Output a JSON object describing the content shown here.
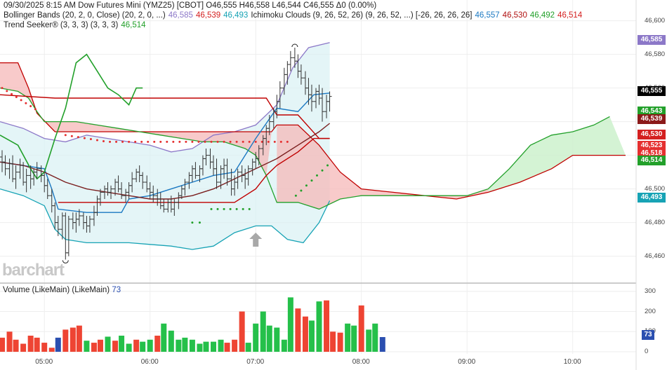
{
  "header": {
    "line1": "09/30/2025  8:15 AM Dow Futures Mini (YMZ25) [CBOT] O46,555 H46,558 L46,544 C46,555 Δ0 (0.00%)",
    "bb_label": "Bollinger Bands (20, 2, 0, Close)  (20, 2, 0, ...)",
    "bb_upper": "46,585",
    "bb_mid": "46,539",
    "bb_lower": "46,493",
    "ichi_label": "Ichimoku Clouds (9, 26, 52, 26)  (9, 26, 52, ...) [-26, 26, 26, 26]",
    "ichi_a": "46,557",
    "ichi_b": "46,530",
    "ichi_c": "46,492",
    "ichi_d": "46,514",
    "trend_label": "Trend Seeker® (3, 3, 3)  (3, 3, 3)",
    "trend_value": "46,514"
  },
  "volume_header": {
    "label": "Volume (LikeMain)  (LikeMain)",
    "value": "73"
  },
  "watermark": "barchart",
  "price_tags": [
    {
      "label": "46,585",
      "color": "#8c78c8",
      "price": 46585
    },
    {
      "label": "46,555",
      "color": "#000000",
      "price": 46555
    },
    {
      "label": "46,543",
      "color": "#22a02a",
      "price": 46543
    },
    {
      "label": "46,539",
      "color": "#8b1a1a",
      "price": 46539
    },
    {
      "label": "46,530",
      "color": "#d42020",
      "price": 46530
    },
    {
      "label": "46,523",
      "color": "#e53030",
      "price": 46523
    },
    {
      "label": "46,518",
      "color": "#e53030",
      "price": 46518
    },
    {
      "label": "46,514",
      "color": "#22a02a",
      "price": 46514
    },
    {
      "label": "46,493",
      "color": "#17a3b5",
      "price": 46493
    }
  ],
  "volume_tag": {
    "label": "73",
    "color": "#2b4fb0"
  },
  "colors": {
    "bb_band": "#8c78c8",
    "bb_lower": "#17a3b5",
    "bb_fill": "#d9f1f3",
    "ichi_blue": "#1a78c2",
    "ichi_red": "#c00000",
    "ichi_green": "#22a02a",
    "cloud_red": "#f5b8b8",
    "cloud_green": "#c9f0c9",
    "trend": "#7a1e1e",
    "vol_up": "#25c04a",
    "vol_down": "#ee4433",
    "vol_neutral": "#2b4fb0"
  },
  "chart_data": [
    {
      "type": "candlestick",
      "title": "Dow Futures Mini (YMZ25) [CBOT]",
      "ylim": [
        46450,
        46605
      ],
      "y_ticks": [
        46460,
        46480,
        46500,
        46520,
        46540,
        46560,
        46580,
        46600
      ],
      "x_ticks": [
        "05:00",
        "06:00",
        "07:00",
        "08:00",
        "09:00",
        "10:00"
      ],
      "x_range_hours": [
        4.58,
        10.6
      ],
      "bars": [
        [
          4.6,
          46519,
          46523,
          46510,
          46516
        ],
        [
          4.63,
          46516,
          46520,
          46508,
          46512
        ],
        [
          4.67,
          46512,
          46518,
          46506,
          46515
        ],
        [
          4.7,
          46515,
          46520,
          46504,
          46506
        ],
        [
          4.73,
          46506,
          46514,
          46500,
          46510
        ],
        [
          4.77,
          46510,
          46518,
          46506,
          46514
        ],
        [
          4.8,
          46514,
          46516,
          46502,
          46504
        ],
        [
          4.83,
          46504,
          46512,
          46498,
          46508
        ],
        [
          4.87,
          46508,
          46514,
          46500,
          46506
        ],
        [
          4.9,
          46506,
          46512,
          46502,
          46510
        ],
        [
          4.93,
          46510,
          46516,
          46506,
          46512
        ],
        [
          4.97,
          46512,
          46514,
          46504,
          46508
        ],
        [
          5.0,
          46508,
          46510,
          46498,
          46502
        ],
        [
          5.03,
          46502,
          46506,
          46494,
          46496
        ],
        [
          5.07,
          46496,
          46500,
          46486,
          46490
        ],
        [
          5.1,
          46490,
          46492,
          46476,
          46480
        ],
        [
          5.13,
          46480,
          46484,
          46472,
          46476
        ],
        [
          5.17,
          46476,
          46486,
          46470,
          46484
        ],
        [
          5.2,
          46484,
          46486,
          46458,
          46462
        ],
        [
          5.23,
          46462,
          46484,
          46460,
          46482
        ],
        [
          5.27,
          46482,
          46486,
          46476,
          46480
        ],
        [
          5.3,
          46480,
          46486,
          46474,
          46482
        ],
        [
          5.33,
          46482,
          46488,
          46478,
          46484
        ],
        [
          5.37,
          46484,
          46486,
          46476,
          46480
        ],
        [
          5.4,
          46480,
          46484,
          46474,
          46478
        ],
        [
          5.43,
          46478,
          46484,
          46474,
          46482
        ],
        [
          5.47,
          46482,
          46490,
          46478,
          46486
        ],
        [
          5.5,
          46486,
          46496,
          46484,
          46494
        ],
        [
          5.53,
          46494,
          46500,
          46490,
          46498
        ],
        [
          5.57,
          46498,
          46502,
          46494,
          46500
        ],
        [
          5.6,
          46500,
          46504,
          46496,
          46498
        ],
        [
          5.63,
          46498,
          46502,
          46494,
          46500
        ],
        [
          5.67,
          46500,
          46506,
          46496,
          46504
        ],
        [
          5.7,
          46504,
          46508,
          46498,
          46500
        ],
        [
          5.73,
          46500,
          46504,
          46494,
          46496
        ],
        [
          5.77,
          46496,
          46500,
          46492,
          46498
        ],
        [
          5.8,
          46498,
          46504,
          46494,
          46502
        ],
        [
          5.83,
          46502,
          46510,
          46498,
          46506
        ],
        [
          5.87,
          46506,
          46512,
          46504,
          46510
        ],
        [
          5.9,
          46510,
          46514,
          46504,
          46508
        ],
        [
          5.93,
          46508,
          46510,
          46500,
          46504
        ],
        [
          5.97,
          46504,
          46508,
          46498,
          46500
        ],
        [
          6.0,
          46500,
          46504,
          46494,
          46498
        ],
        [
          6.03,
          46498,
          46502,
          46492,
          46496
        ],
        [
          6.07,
          46496,
          46500,
          46490,
          46494
        ],
        [
          6.1,
          46494,
          46498,
          46488,
          46490
        ],
        [
          6.13,
          46490,
          46494,
          46486,
          46488
        ],
        [
          6.17,
          46488,
          46494,
          46486,
          46492
        ],
        [
          6.2,
          46492,
          46496,
          46486,
          46488
        ],
        [
          6.23,
          46488,
          46494,
          46484,
          46492
        ],
        [
          6.27,
          46492,
          46498,
          46488,
          46496
        ],
        [
          6.3,
          46496,
          46502,
          46494,
          46500
        ],
        [
          6.33,
          46500,
          46506,
          46496,
          46504
        ],
        [
          6.37,
          46504,
          46510,
          46500,
          46508
        ],
        [
          6.4,
          46508,
          46514,
          46504,
          46512
        ],
        [
          6.43,
          46512,
          46516,
          46506,
          46508
        ],
        [
          6.47,
          46508,
          46514,
          46504,
          46512
        ],
        [
          6.5,
          46512,
          46520,
          46508,
          46518
        ],
        [
          6.53,
          46518,
          46524,
          46514,
          46520
        ],
        [
          6.57,
          46520,
          46524,
          46512,
          46516
        ],
        [
          6.6,
          46516,
          46520,
          46508,
          46512
        ],
        [
          6.63,
          46512,
          46518,
          46500,
          46504
        ],
        [
          6.67,
          46504,
          46514,
          46500,
          46512
        ],
        [
          6.7,
          46512,
          46518,
          46506,
          46514
        ],
        [
          6.73,
          46514,
          46518,
          46502,
          46506
        ],
        [
          6.77,
          46506,
          46512,
          46496,
          46500
        ],
        [
          6.8,
          46500,
          46508,
          46496,
          46504
        ],
        [
          6.83,
          46504,
          46512,
          46500,
          46510
        ],
        [
          6.87,
          46510,
          46514,
          46504,
          46508
        ],
        [
          6.9,
          46508,
          46512,
          46500,
          46506
        ],
        [
          6.93,
          46506,
          46514,
          46502,
          46512
        ],
        [
          6.97,
          46512,
          46518,
          46508,
          46516
        ],
        [
          7.0,
          46516,
          46522,
          46512,
          46518
        ],
        [
          7.03,
          46518,
          46526,
          46514,
          46524
        ],
        [
          7.07,
          46524,
          46532,
          46520,
          46530
        ],
        [
          7.1,
          46530,
          46538,
          46526,
          46536
        ],
        [
          7.13,
          46536,
          46544,
          46532,
          46540
        ],
        [
          7.17,
          46540,
          46548,
          46536,
          46546
        ],
        [
          7.2,
          46546,
          46556,
          46542,
          46552
        ],
        [
          7.23,
          46552,
          46564,
          46548,
          46560
        ],
        [
          7.27,
          46560,
          46572,
          46556,
          46568
        ],
        [
          7.3,
          46568,
          46576,
          46562,
          46574
        ],
        [
          7.33,
          46574,
          46582,
          46570,
          46578
        ],
        [
          7.37,
          46578,
          46584,
          46572,
          46576
        ],
        [
          7.4,
          46576,
          46580,
          46566,
          46570
        ],
        [
          7.43,
          46570,
          46574,
          46562,
          46566
        ],
        [
          7.47,
          46566,
          46570,
          46556,
          46560
        ],
        [
          7.5,
          46560,
          46566,
          46550,
          46556
        ],
        [
          7.53,
          46556,
          46562,
          46546,
          46552
        ],
        [
          7.57,
          46552,
          46560,
          46548,
          46558
        ],
        [
          7.6,
          46558,
          46562,
          46550,
          46554
        ],
        [
          7.63,
          46554,
          46560,
          46540,
          46546
        ],
        [
          7.67,
          46546,
          46556,
          46542,
          46552
        ],
        [
          7.7,
          46552,
          46558,
          46546,
          46555
        ]
      ]
    },
    {
      "type": "bar",
      "title": "Volume (LikeMain)",
      "ylim": [
        0,
        320
      ],
      "y_ticks": [
        0,
        100,
        200,
        300
      ],
      "values": [
        [
          4.6,
          70,
          "down"
        ],
        [
          4.67,
          100,
          "down"
        ],
        [
          4.73,
          60,
          "down"
        ],
        [
          4.8,
          40,
          "down"
        ],
        [
          4.87,
          80,
          "down"
        ],
        [
          4.93,
          70,
          "down"
        ],
        [
          5.0,
          45,
          "down"
        ],
        [
          5.07,
          20,
          "down"
        ],
        [
          5.13,
          70,
          "neutral"
        ],
        [
          5.2,
          110,
          "down"
        ],
        [
          5.27,
          120,
          "down"
        ],
        [
          5.33,
          130,
          "down"
        ],
        [
          5.4,
          55,
          "up"
        ],
        [
          5.47,
          45,
          "down"
        ],
        [
          5.53,
          60,
          "down"
        ],
        [
          5.6,
          75,
          "up"
        ],
        [
          5.67,
          55,
          "down"
        ],
        [
          5.73,
          80,
          "up"
        ],
        [
          5.8,
          40,
          "up"
        ],
        [
          5.87,
          60,
          "down"
        ],
        [
          5.93,
          50,
          "up"
        ],
        [
          6.0,
          60,
          "up"
        ],
        [
          6.07,
          80,
          "down"
        ],
        [
          6.13,
          140,
          "up"
        ],
        [
          6.2,
          105,
          "up"
        ],
        [
          6.27,
          60,
          "up"
        ],
        [
          6.33,
          70,
          "up"
        ],
        [
          6.4,
          60,
          "up"
        ],
        [
          6.47,
          40,
          "up"
        ],
        [
          6.53,
          50,
          "up"
        ],
        [
          6.6,
          50,
          "up"
        ],
        [
          6.67,
          60,
          "up"
        ],
        [
          6.73,
          45,
          "down"
        ],
        [
          6.8,
          60,
          "down"
        ],
        [
          6.87,
          200,
          "down"
        ],
        [
          6.93,
          45,
          "up"
        ],
        [
          7.0,
          140,
          "up"
        ],
        [
          7.07,
          200,
          "up"
        ],
        [
          7.13,
          130,
          "up"
        ],
        [
          7.2,
          120,
          "up"
        ],
        [
          7.27,
          60,
          "up"
        ],
        [
          7.33,
          270,
          "up"
        ],
        [
          7.4,
          215,
          "down"
        ],
        [
          7.47,
          175,
          "down"
        ],
        [
          7.53,
          155,
          "up"
        ],
        [
          7.6,
          250,
          "up"
        ],
        [
          7.67,
          255,
          "down"
        ],
        [
          7.73,
          100,
          "down"
        ],
        [
          7.8,
          95,
          "down"
        ],
        [
          7.87,
          140,
          "up"
        ],
        [
          7.93,
          130,
          "up"
        ],
        [
          8.0,
          230,
          "down"
        ],
        [
          8.07,
          110,
          "up"
        ],
        [
          8.13,
          140,
          "up"
        ],
        [
          8.2,
          73,
          "neutral"
        ]
      ]
    }
  ]
}
